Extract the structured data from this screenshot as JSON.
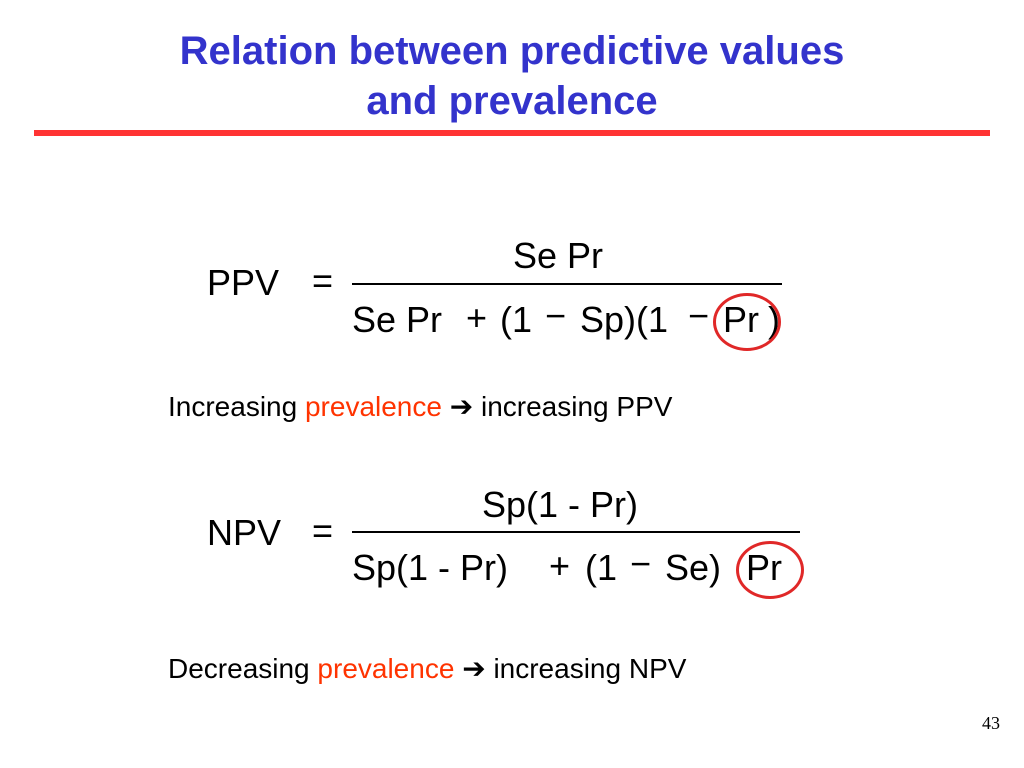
{
  "slide": {
    "title_line1": "Relation between predictive values",
    "title_line2": "and prevalence",
    "page_number": "43",
    "colors": {
      "title": "#3333cc",
      "rule": "#ff3333",
      "accent": "#ff3300",
      "circle": "#e02828"
    }
  },
  "ppv": {
    "lhs": "PPV",
    "equals": "=",
    "numerator": "Se Pr",
    "den_part1": "Se Pr",
    "den_plus": "+",
    "den_part2": "(1",
    "den_minus": "−",
    "den_part3": "Sp)(1",
    "den_minus2": "−",
    "den_pr": "Pr",
    "den_close": ")"
  },
  "ppv_statement": {
    "prefix": "Increasing",
    "highlight": "prevalence",
    "arrow": "➔",
    "suffix": "increasing PPV"
  },
  "npv": {
    "lhs": "NPV",
    "equals": "=",
    "numerator": "Sp(1 - Pr)",
    "den_part1": "Sp(1 - Pr)",
    "den_plus": "+",
    "den_part2": "(1",
    "den_minus": "−",
    "den_part3": "Se)",
    "den_pr": "Pr"
  },
  "npv_statement": {
    "prefix": "Decreasing",
    "highlight": "prevalence",
    "arrow": "➔",
    "suffix": "increasing NPV"
  }
}
